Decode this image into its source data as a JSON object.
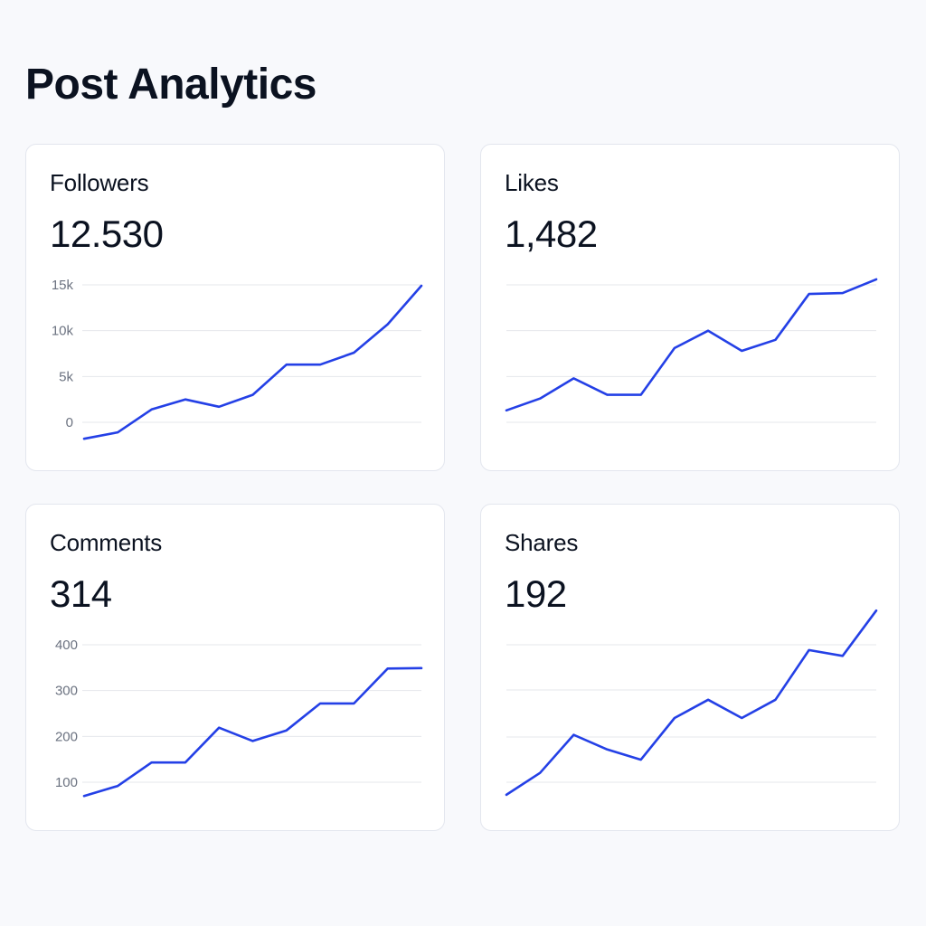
{
  "page": {
    "title": "Post Analytics"
  },
  "colors": {
    "background": "#f8f9fc",
    "card_background": "#ffffff",
    "card_border": "#e3e6ee",
    "line": "#2440e6",
    "grid": "#e5e7eb",
    "tick_text": "#6b7280"
  },
  "cards": [
    {
      "title": "Followers",
      "value": "12.530"
    },
    {
      "title": "Likes",
      "value": "1,482"
    },
    {
      "title": "Comments",
      "value": "314"
    },
    {
      "title": "Shares",
      "value": "192"
    }
  ],
  "chart_data": [
    {
      "type": "line",
      "title": "Followers",
      "xlabel": "",
      "ylabel": "",
      "yticks": [
        0,
        5000,
        10000,
        15000
      ],
      "ytick_labels": [
        "0",
        "5k",
        "10k",
        "15k"
      ],
      "ylim": [
        -2000,
        15000
      ],
      "grid": true,
      "x": [
        0,
        1,
        2,
        3,
        4,
        5,
        6,
        7,
        8,
        9,
        10
      ],
      "series": [
        {
          "values": [
            -1800,
            -1100,
            1400,
            2500,
            1700,
            3000,
            6300,
            6300,
            7600,
            10700,
            14900
          ]
        }
      ]
    },
    {
      "type": "line",
      "title": "Likes",
      "xlabel": "",
      "ylabel": "",
      "yticks": [
        0,
        500,
        1000,
        1500
      ],
      "ytick_labels": [],
      "ylim": [
        0,
        1500
      ],
      "grid": true,
      "x": [
        0,
        1,
        2,
        3,
        4,
        5,
        6,
        7,
        8,
        9,
        10,
        11
      ],
      "series": [
        {
          "values": [
            130,
            260,
            480,
            300,
            300,
            810,
            1000,
            780,
            900,
            1400,
            1410,
            1560
          ]
        }
      ]
    },
    {
      "type": "line",
      "title": "Comments",
      "xlabel": "",
      "ylabel": "",
      "yticks": [
        100,
        200,
        300,
        400
      ],
      "ytick_labels": [
        "100",
        "200",
        "300",
        "400"
      ],
      "ylim": [
        60,
        400
      ],
      "grid": true,
      "x": [
        0,
        1,
        2,
        3,
        4,
        5,
        6,
        7,
        8,
        9,
        10
      ],
      "series": [
        {
          "values": [
            70,
            92,
            143,
            143,
            219,
            190,
            213,
            272,
            272,
            348,
            349
          ]
        }
      ]
    },
    {
      "type": "line",
      "title": "Shares",
      "xlabel": "",
      "ylabel": "",
      "yticks": [],
      "ytick_labels": [],
      "ylim": [
        0,
        240
      ],
      "grid": true,
      "x": [
        0,
        1,
        2,
        3,
        4,
        5,
        6,
        7,
        8,
        9,
        10,
        11
      ],
      "series": [
        {
          "values": [
            10,
            40,
            92,
            72,
            58,
            115,
            140,
            115,
            140,
            208,
            200,
            262
          ]
        }
      ]
    }
  ]
}
